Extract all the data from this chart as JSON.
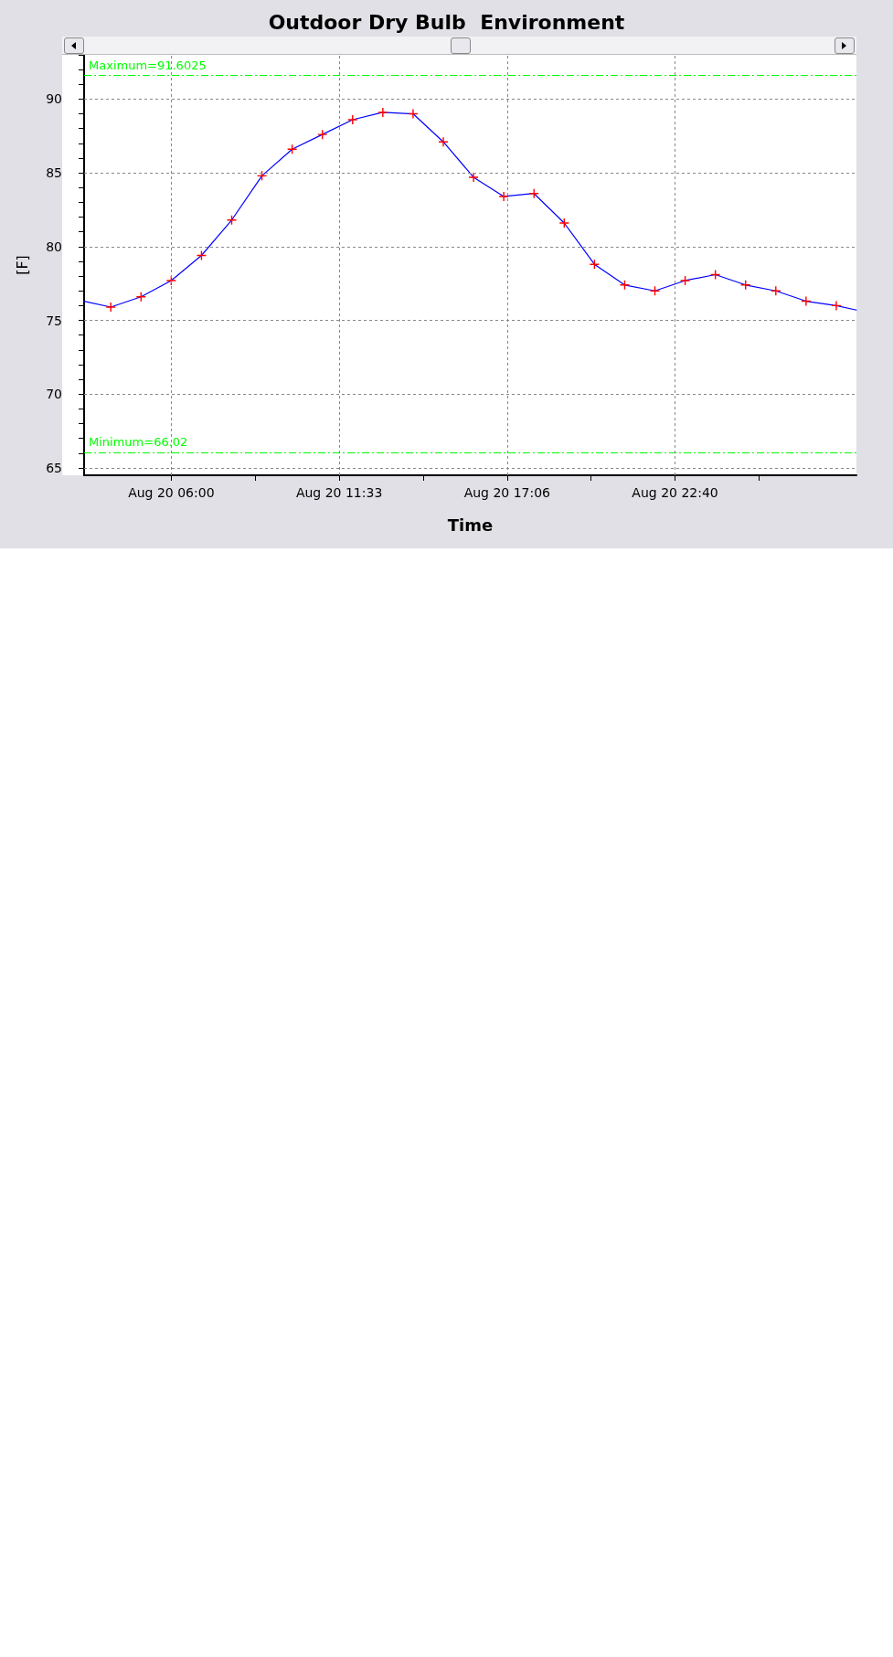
{
  "chart_data": {
    "type": "line",
    "title": "Outdoor Dry Bulb  Environment",
    "xlabel": "Time",
    "ylabel": "[F]",
    "x": [
      "--08-20T03:07",
      "--08-20T04:00",
      "--08-20T05:00",
      "--08-20T06:00",
      "--08-20T07:00",
      "--08-20T08:00",
      "--08-20T09:00",
      "--08-20T10:00",
      "--08-20T11:00",
      "--08-20T12:00",
      "--08-20T13:00",
      "--08-20T14:00",
      "--08-20T15:00",
      "--08-20T16:00",
      "--08-20T17:00",
      "--08-20T18:00",
      "--08-20T19:00",
      "--08-20T20:00",
      "--08-20T21:00",
      "--08-20T22:00",
      "--08-20T23:00",
      "--08-21T00:00",
      "--08-21T01:00",
      "--08-21T02:00",
      "--08-21T03:00",
      "--08-21T04:00",
      "--08-21T04:40"
    ],
    "series": [
      {
        "color": "#0000ff",
        "colors": [
          null,
          "#ff0000",
          "#ff0000",
          "#ff0000",
          "#ff0000",
          "#ff0000",
          "#ff0000",
          "#ff0000",
          "#ff0000",
          "#ff0000",
          "#ff0000",
          "#ff0000",
          "#ff0000",
          "#ff0000",
          "#ff0000",
          "#ff0000",
          "#ff0000",
          "#ff0000",
          "#ff0000",
          "#ff0000",
          "#ff0000",
          "#ff0000",
          "#ff0000",
          "#ff0000",
          "#ff0000",
          "#ff0000",
          null
        ],
        "values": [
          76.3,
          75.9,
          76.6,
          77.7,
          79.4,
          81.8,
          84.8,
          86.6,
          87.6,
          88.6,
          89.1,
          89.0,
          87.1,
          84.7,
          83.4,
          83.6,
          81.6,
          78.8,
          77.4,
          77.0,
          77.7,
          78.1,
          77.4,
          77.0,
          76.3,
          76.0,
          75.7
        ]
      }
    ],
    "xlim": [
      "--08-20T03:07",
      "--08-21T04:40"
    ],
    "xticks": [
      {
        "value": "--08-20T06:00",
        "label": "Aug 20 06:00"
      },
      {
        "value": "--08-20T08:46:40",
        "label": null
      },
      {
        "value": "--08-20T11:33:20",
        "label": "Aug 20 11:33"
      },
      {
        "value": "--08-20T14:20",
        "label": null
      },
      {
        "value": "--08-20T17:06:40",
        "label": "Aug 20 17:06"
      },
      {
        "value": "--08-20T19:53:20",
        "label": null
      },
      {
        "value": "--08-20T22:40",
        "label": "Aug 20 22:40"
      },
      {
        "value": "--08-21T01:26:40",
        "label": null
      }
    ],
    "ylim": [
      64.5,
      93
    ],
    "yticks": [
      65,
      70,
      75,
      80,
      85,
      90
    ],
    "ref_lines": [
      {
        "axis": "y",
        "value": 91.6025,
        "label": "Maximum=91.6025",
        "color": "#00ff00",
        "line_style": "dashed"
      },
      {
        "axis": "y",
        "value": 66.02,
        "label": "Minimum=66.02",
        "color": "#00ff00",
        "line_style": "dashed"
      }
    ],
    "grid": true,
    "marker": "cross",
    "line_style": "solid"
  }
}
